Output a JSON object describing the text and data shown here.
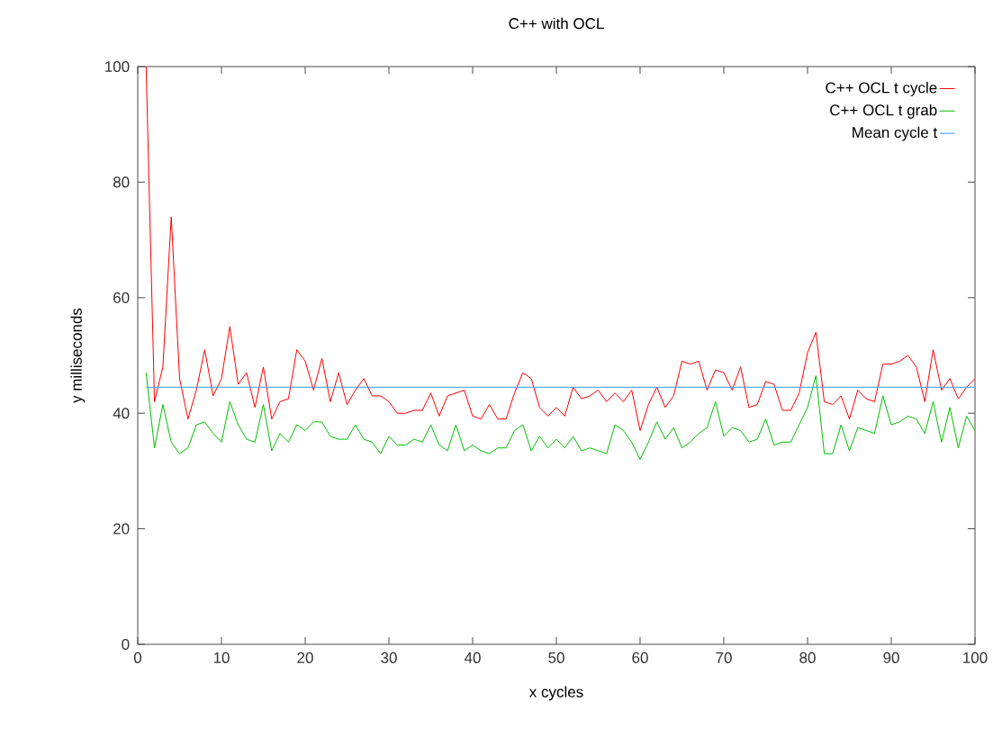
{
  "chart_data": {
    "type": "line",
    "title": "C++ with OCL",
    "xlabel": "x cycles",
    "ylabel": "y milliseconds",
    "x": [
      1,
      2,
      3,
      4,
      5,
      6,
      7,
      8,
      9,
      10,
      11,
      12,
      13,
      14,
      15,
      16,
      17,
      18,
      19,
      20,
      21,
      22,
      23,
      24,
      25,
      26,
      27,
      28,
      29,
      30,
      31,
      32,
      33,
      34,
      35,
      36,
      37,
      38,
      39,
      40,
      41,
      42,
      43,
      44,
      45,
      46,
      47,
      48,
      49,
      50,
      51,
      52,
      53,
      54,
      55,
      56,
      57,
      58,
      59,
      60,
      61,
      62,
      63,
      64,
      65,
      66,
      67,
      68,
      69,
      70,
      71,
      72,
      73,
      74,
      75,
      76,
      77,
      78,
      79,
      80,
      81,
      82,
      83,
      84,
      85,
      86,
      87,
      88,
      89,
      90,
      91,
      92,
      93,
      94,
      95,
      96,
      97,
      98,
      99,
      100
    ],
    "series": [
      {
        "name": "C++ OCL t cycle",
        "color": "#ff0000",
        "values": [
          100,
          42,
          48,
          74,
          46,
          39,
          44,
          51,
          43,
          46,
          55,
          45,
          47,
          41,
          48,
          39,
          42,
          42.5,
          51,
          49,
          44,
          49.5,
          42,
          47,
          41.5,
          44,
          46,
          43,
          43,
          42,
          40,
          40,
          40.5,
          40.5,
          43.5,
          39.5,
          43,
          43.5,
          44,
          39.5,
          39,
          41.5,
          39,
          39,
          43.5,
          47,
          46,
          41,
          39.5,
          41,
          39.5,
          44.5,
          42.5,
          43,
          44,
          42,
          43.5,
          42,
          44,
          37,
          41.5,
          44.5,
          41,
          43,
          49,
          48.5,
          49,
          44,
          47.5,
          47,
          44,
          48,
          41,
          41.5,
          45.5,
          45,
          40.5,
          40.5,
          43.5,
          50.5,
          54,
          42,
          41.5,
          43,
          39,
          44,
          42.5,
          42,
          48.5,
          48.5,
          49,
          50,
          48,
          42,
          51,
          44,
          46,
          42.5,
          44.5,
          46
        ]
      },
      {
        "name": "C++ OCL t grab",
        "color": "#00c000",
        "values": [
          47,
          34,
          41.5,
          35,
          33,
          34,
          38,
          38.5,
          36.5,
          35,
          42,
          38,
          35.5,
          35,
          41.5,
          33.5,
          36.5,
          35,
          38,
          37,
          38.5,
          38.5,
          36,
          35.5,
          35.5,
          38,
          35.5,
          35,
          33,
          36,
          34.5,
          34.5,
          35.5,
          35,
          38,
          34.5,
          33.5,
          38,
          33.5,
          34.5,
          33.5,
          33,
          34,
          34,
          37,
          38,
          33.5,
          36,
          34,
          35.5,
          34,
          36,
          33.5,
          34,
          33.5,
          33,
          38,
          37,
          35,
          32,
          35,
          38.5,
          35.5,
          37.5,
          34,
          35,
          36.5,
          37.5,
          42,
          36,
          37.5,
          37,
          35,
          35.5,
          39,
          34.5,
          35,
          35,
          38,
          41,
          46.5,
          33,
          33,
          38,
          33.5,
          37.5,
          37,
          36.5,
          43,
          38,
          38.5,
          39.5,
          39,
          36.5,
          42,
          35,
          41,
          34,
          39.5,
          37
        ]
      },
      {
        "name": "Mean cycle t",
        "color": "#3399ff",
        "x": [
          1,
          100
        ],
        "values": [
          44.5,
          44.5
        ]
      }
    ],
    "xlim": [
      0,
      100
    ],
    "xticks": [
      0,
      10,
      20,
      30,
      40,
      50,
      60,
      70,
      80,
      90,
      100
    ],
    "ylim": [
      0,
      100
    ],
    "yticks": [
      0,
      20,
      40,
      60,
      80,
      100
    ],
    "legend": "top right",
    "marker": "none",
    "line_style": "solid"
  }
}
